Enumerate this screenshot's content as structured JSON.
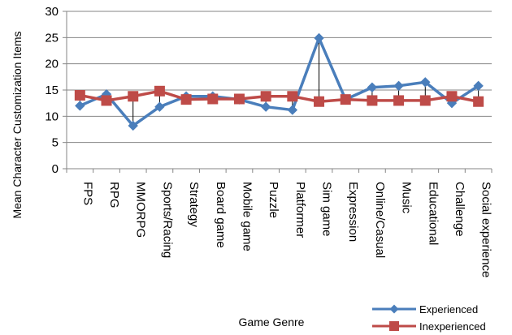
{
  "chart_data": {
    "type": "line",
    "title": "",
    "xlabel": "Game Genre",
    "ylabel": "Mean Character Customization Items",
    "ylim": [
      0,
      30
    ],
    "yticks": [
      0,
      5,
      10,
      15,
      20,
      25,
      30
    ],
    "grid": "horizontal",
    "legend_position": "bottom-right",
    "categories": [
      "FPS",
      "RPG",
      "MMORPG",
      "Sports/Racing",
      "Strategy",
      "Board game",
      "Mobile game",
      "Puzzle",
      "Platformer",
      "Sim game",
      "Expression",
      "Online/Casual",
      "Music",
      "Educational",
      "Challenge",
      "Social experience"
    ],
    "series": [
      {
        "name": "Experienced",
        "color": "#4a7ebb",
        "marker": "diamond",
        "values": [
          12.0,
          14.2,
          8.2,
          11.8,
          13.8,
          13.8,
          13.2,
          11.8,
          11.2,
          24.9,
          13.2,
          15.5,
          15.8,
          16.5,
          12.5,
          15.8
        ]
      },
      {
        "name": "Inexperienced",
        "color": "#be4b48",
        "marker": "square",
        "values": [
          14.0,
          13.0,
          13.8,
          14.8,
          13.2,
          13.3,
          13.3,
          13.8,
          13.8,
          12.8,
          13.2,
          13.0,
          13.0,
          13.0,
          13.8,
          12.8
        ]
      }
    ]
  }
}
